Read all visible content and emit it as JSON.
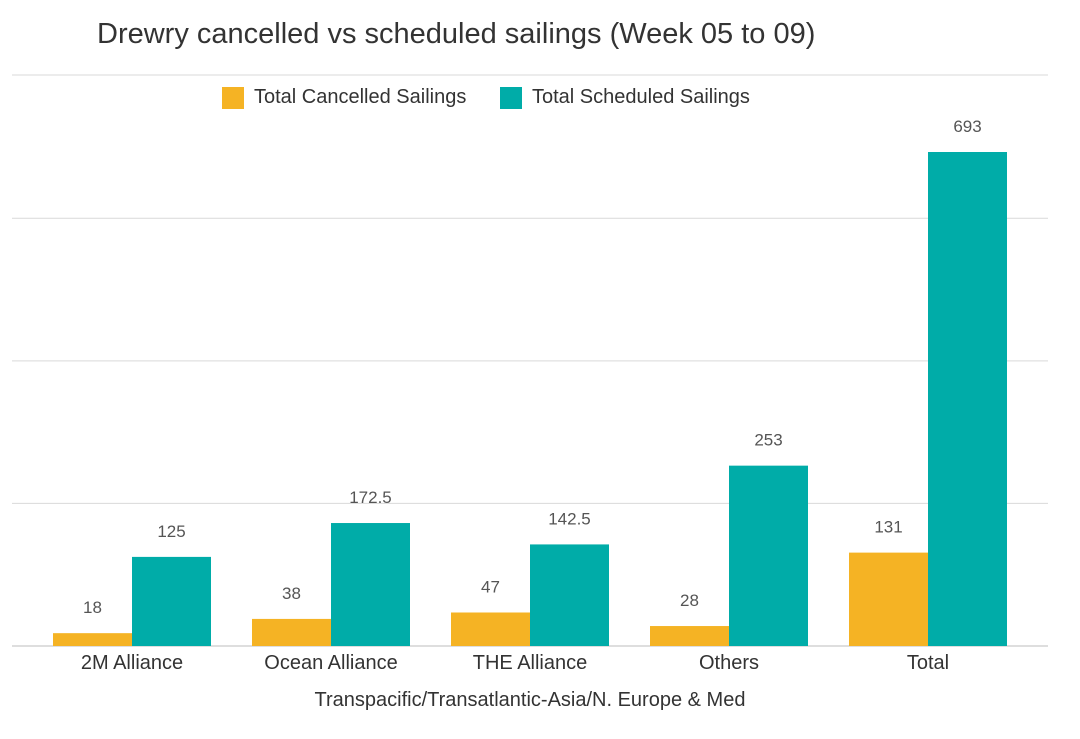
{
  "chart_data": {
    "type": "bar",
    "title": "Drewry cancelled vs scheduled sailings (Week 05 to 09)",
    "xlabel": "Transpacific/Transatlantic-Asia/N. Europe & Med",
    "ylabel": "",
    "categories": [
      "2M Alliance",
      "Ocean Alliance",
      "THE Alliance",
      "Others",
      "Total"
    ],
    "series": [
      {
        "name": "Total Cancelled Sailings",
        "color": "#F5B324",
        "values": [
          18,
          38,
          47,
          28,
          131
        ],
        "labels": [
          "18",
          "38",
          "47",
          "28",
          "131"
        ]
      },
      {
        "name": "Total Scheduled Sailings",
        "color": "#00ACA8",
        "values": [
          125,
          172.5,
          142.5,
          253,
          693
        ],
        "labels": [
          "125",
          "172.5",
          "142.5",
          "253",
          "693"
        ]
      }
    ],
    "ylim": [
      0,
      700
    ],
    "grid": true,
    "legend_position": "top"
  }
}
